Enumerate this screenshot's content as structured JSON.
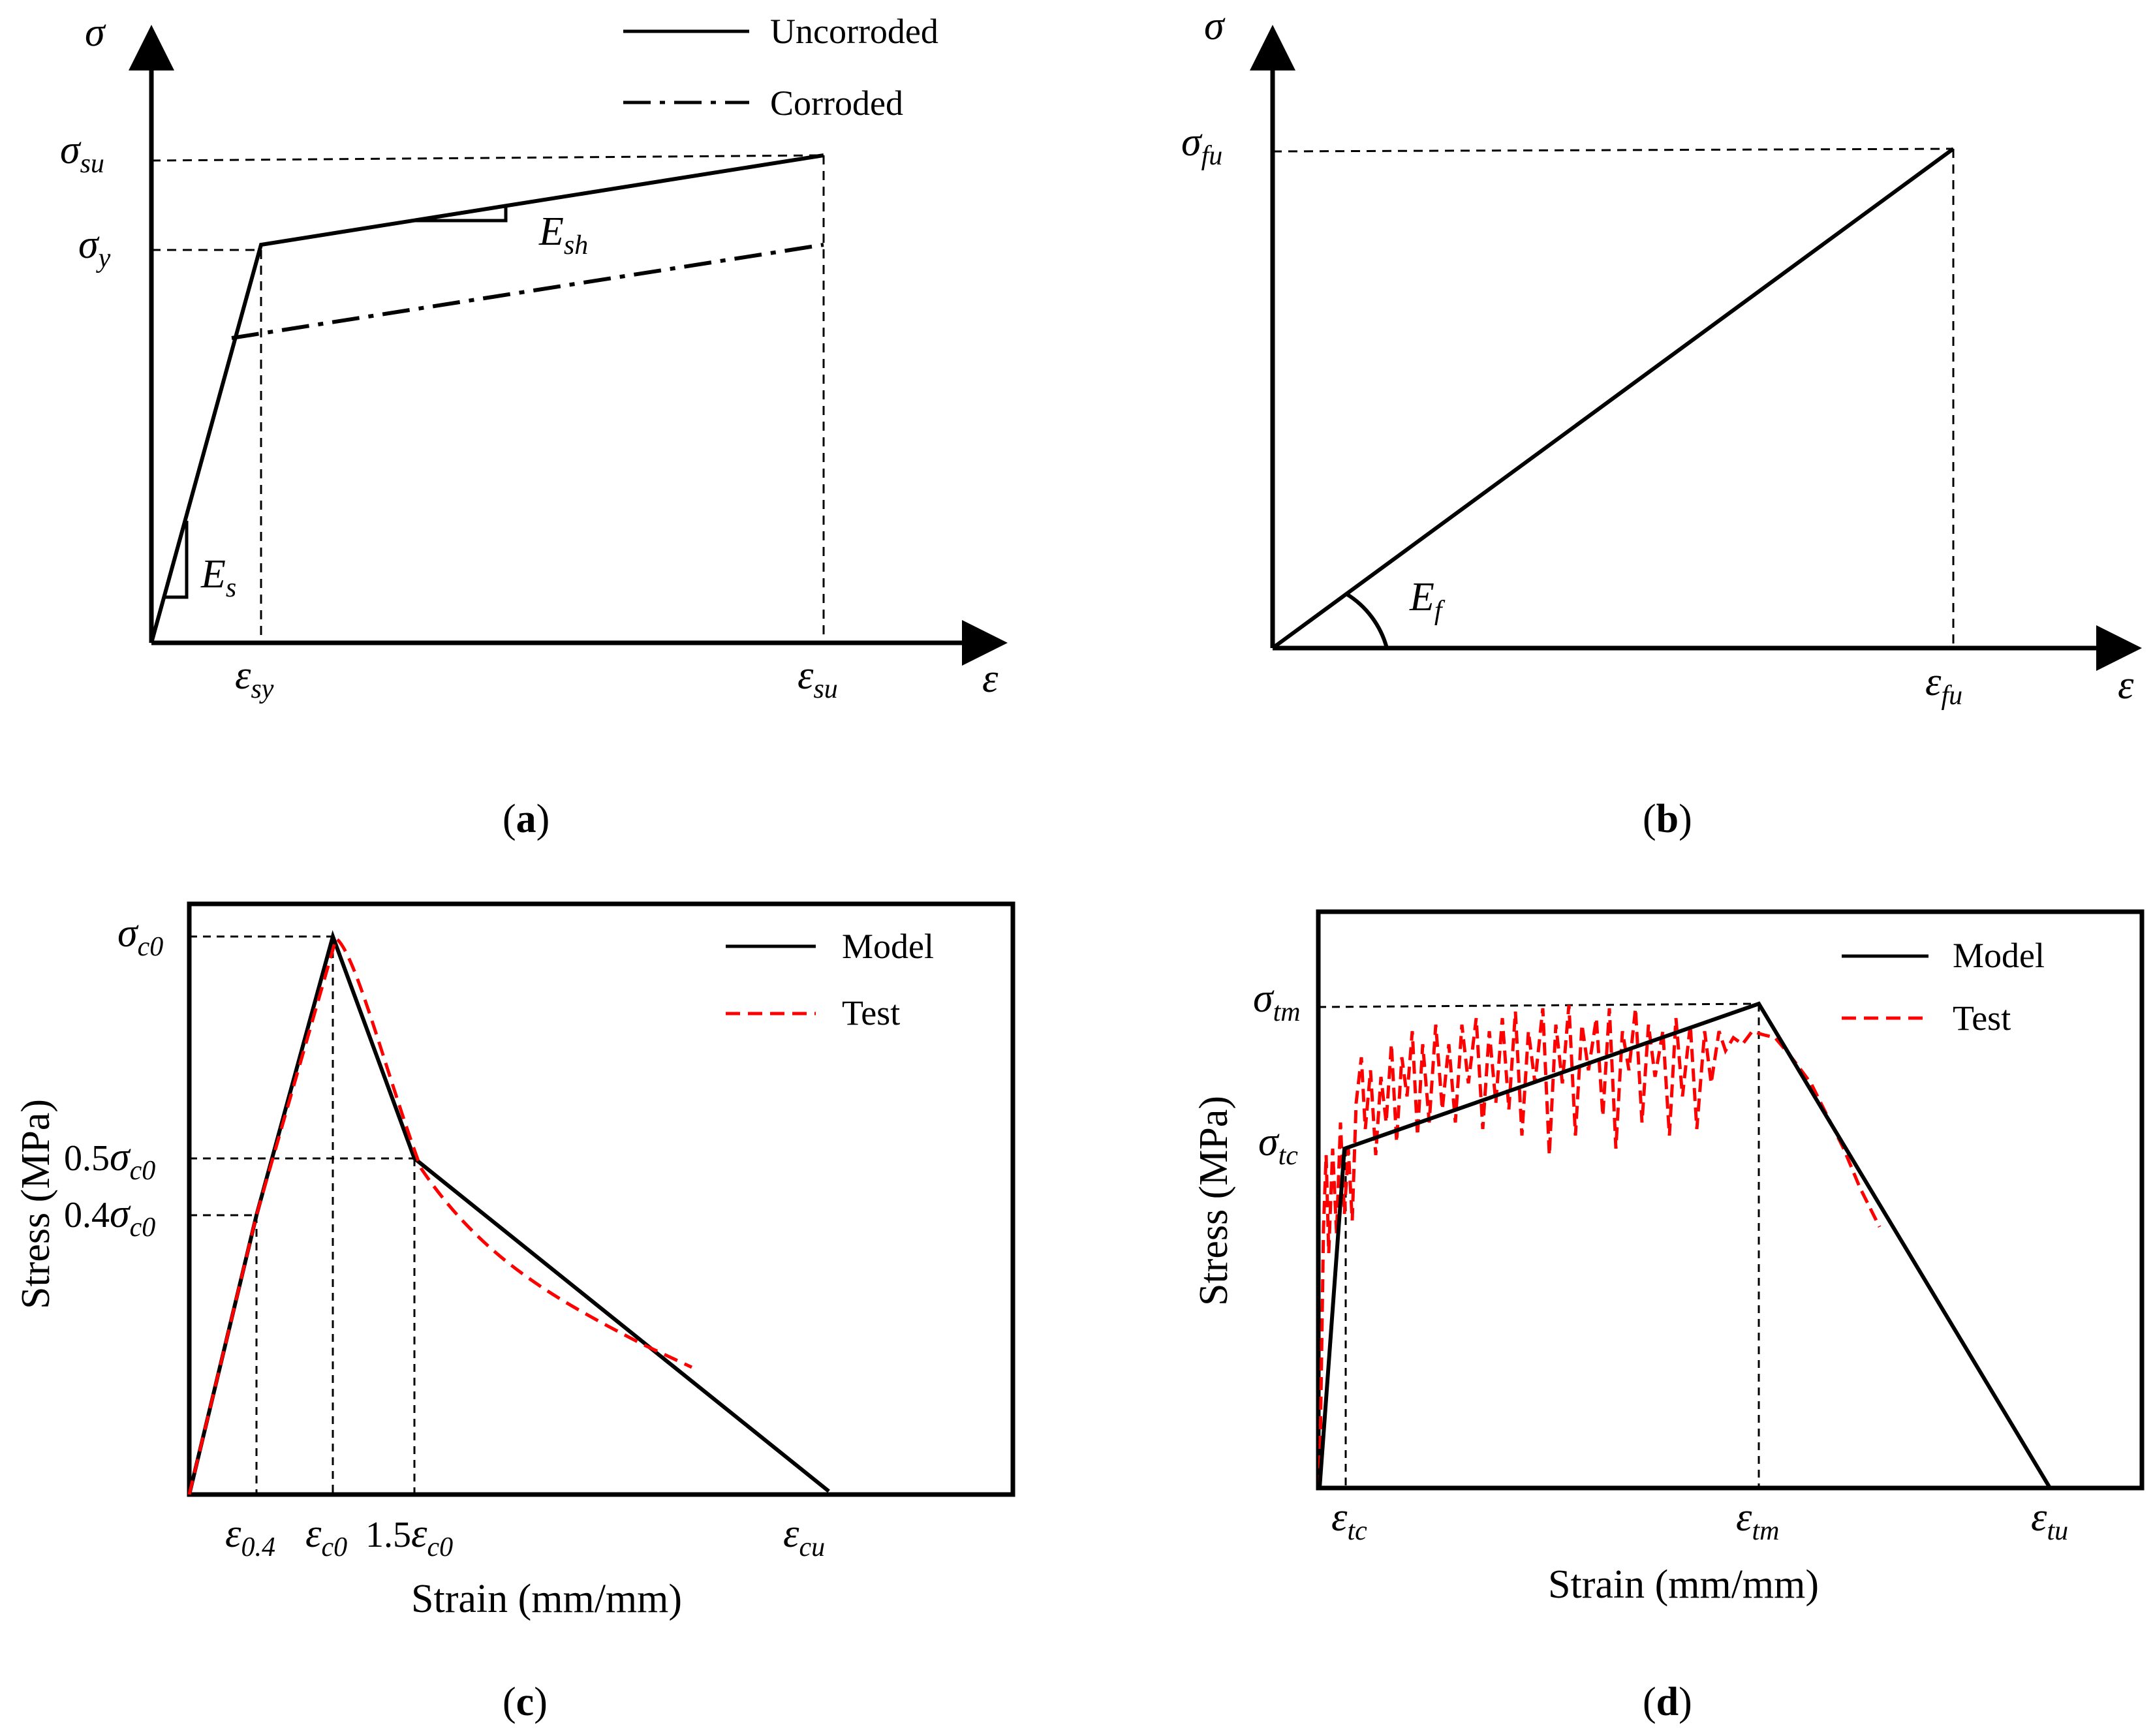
{
  "panels": {
    "a": {
      "caption_letter": "a",
      "y_axis": "σ",
      "x_axis": "ε",
      "y_ticks": [
        {
          "main": "σ",
          "sub": "su"
        },
        {
          "main": "σ",
          "sub": "y"
        }
      ],
      "x_ticks": [
        {
          "main": "ε",
          "sub": "sy"
        },
        {
          "main": "ε",
          "sub": "su"
        }
      ],
      "slope_labels": [
        {
          "main": "E",
          "sub": "sh"
        },
        {
          "main": "E",
          "sub": "s"
        }
      ],
      "legend": [
        "Uncorroded",
        "Corroded"
      ]
    },
    "b": {
      "caption_letter": "b",
      "y_axis": "σ",
      "x_axis": "ε",
      "y_tick": {
        "main": "σ",
        "sub": "fu"
      },
      "x_tick": {
        "main": "ε",
        "sub": "fu"
      },
      "angle_label": {
        "main": "E",
        "sub": "f"
      }
    },
    "c": {
      "caption_letter": "c",
      "ylabel": "Stress (MPa)",
      "xlabel": "Strain (mm/mm)",
      "y_ticks": [
        {
          "prefix": "",
          "main": "σ",
          "sub": "c0"
        },
        {
          "prefix": "0.5",
          "main": "σ",
          "sub": "c0"
        },
        {
          "prefix": "0.4",
          "main": "σ",
          "sub": "c0"
        }
      ],
      "x_ticks": [
        {
          "prefix": "",
          "main": "ε",
          "sub": "0.4"
        },
        {
          "prefix": "",
          "main": "ε",
          "sub": "c0"
        },
        {
          "prefix": "1.5",
          "main": "ε",
          "sub": "c0"
        },
        {
          "prefix": "",
          "main": "ε",
          "sub": "cu"
        }
      ],
      "legend": [
        "Model",
        "Test"
      ]
    },
    "d": {
      "caption_letter": "d",
      "ylabel": "Stress (MPa)",
      "xlabel": "Strain (mm/mm)",
      "y_ticks": [
        {
          "main": "σ",
          "sub": "tm"
        },
        {
          "main": "σ",
          "sub": "tc"
        }
      ],
      "x_ticks": [
        {
          "main": "ε",
          "sub": "tc"
        },
        {
          "main": "ε",
          "sub": "tm"
        },
        {
          "main": "ε",
          "sub": "tu"
        }
      ],
      "legend": [
        "Model",
        "Test"
      ]
    }
  },
  "colors": {
    "line": "#000000",
    "test": "#ff0000"
  }
}
